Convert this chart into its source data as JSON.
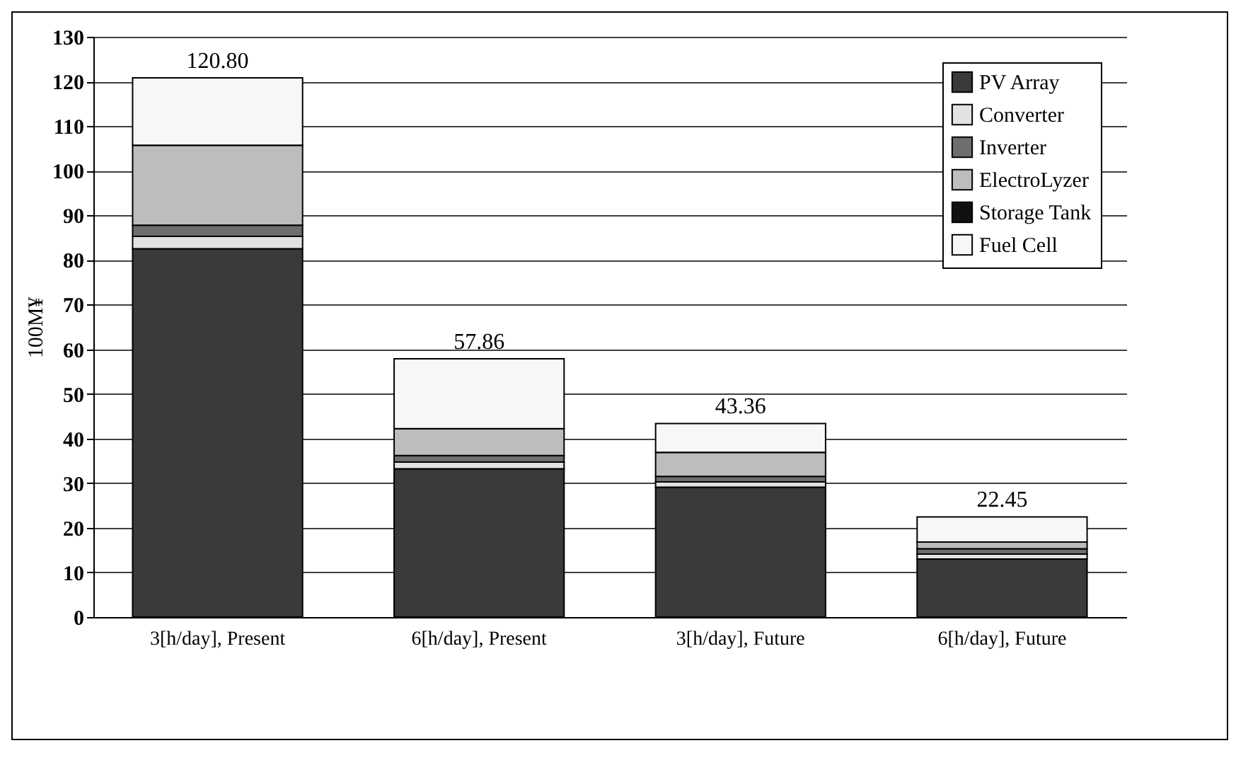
{
  "chart_data": {
    "type": "bar",
    "stacked": true,
    "ylabel": "100M¥",
    "categories": [
      "3[h/day], Present",
      "6[h/day], Present",
      "3[h/day], Future",
      "6[h/day], Future"
    ],
    "series": [
      {
        "name": "PV Array",
        "color": "#3a3a3a",
        "values": [
          82.5,
          33.2,
          29.1,
          13.0
        ]
      },
      {
        "name": "Converter",
        "color": "#e2e2e2",
        "values": [
          2.8,
          1.5,
          1.2,
          1.1
        ]
      },
      {
        "name": "Inverter",
        "color": "#6e6e6e",
        "values": [
          2.5,
          1.5,
          1.2,
          1.2
        ]
      },
      {
        "name": "ElectroLyzer",
        "color": "#bdbdbd",
        "values": [
          17.9,
          6.0,
          5.4,
          1.5
        ]
      },
      {
        "name": "Storage Tank",
        "color": "#111111",
        "values": [
          0,
          0,
          0,
          0
        ]
      },
      {
        "name": "Fuel Cell",
        "color": "#f7f7f7",
        "values": [
          15.1,
          15.66,
          6.46,
          5.65
        ]
      }
    ],
    "totals": [
      "120.80",
      "57.86",
      "43.36",
      "22.45"
    ],
    "ylim": [
      0,
      130
    ],
    "yticks": [
      0,
      10,
      20,
      30,
      40,
      50,
      60,
      70,
      80,
      90,
      100,
      110,
      120,
      130
    ],
    "grid": "y",
    "legend": "top right"
  }
}
